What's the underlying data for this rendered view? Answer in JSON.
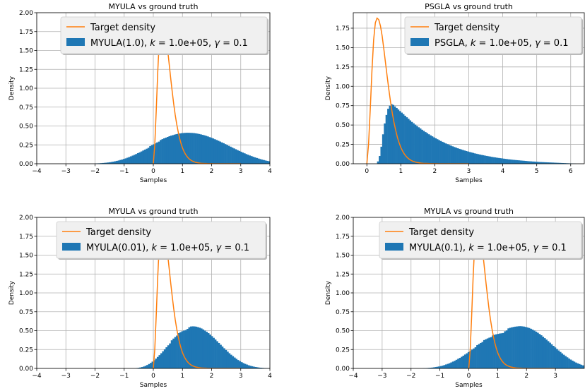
{
  "figure": {
    "colors": {
      "histogram": "#1f77b4",
      "target": "#ff7f0e",
      "grid": "#b0b0b0",
      "legend_bg": "#f0f0f0"
    }
  },
  "chart_data": [
    {
      "type": "bar",
      "title": "MYULA vs ground truth",
      "xlabel": "Samples",
      "ylabel": "Density",
      "xlim": [
        -4,
        4
      ],
      "ylim": [
        0,
        2.0
      ],
      "xticks": [
        "−4",
        "−3",
        "−2",
        "−1",
        "0",
        "1",
        "2",
        "3",
        "4"
      ],
      "xtick_values": [
        -4,
        -3,
        -2,
        -1,
        0,
        1,
        2,
        3,
        4
      ],
      "yticks": [
        "0.00",
        "0.25",
        "0.50",
        "0.75",
        "1.00",
        "1.25",
        "1.50",
        "1.75",
        "2.00"
      ],
      "ytick_values": [
        0,
        0.25,
        0.5,
        0.75,
        1.0,
        1.25,
        1.5,
        1.75,
        2.0
      ],
      "grid": true,
      "legend": {
        "placement": "top-center",
        "target_label": "Target density",
        "hist_prefix": "MYULA(1.0), ",
        "hist_k": "k",
        "hist_mid": " = 1.0e+05, ",
        "hist_g": "γ",
        "hist_end": " = 0.1"
      },
      "histogram": {
        "x_start": -2.0,
        "bin_width": 0.06,
        "values": [
          0.004,
          0.005,
          0.006,
          0.008,
          0.01,
          0.012,
          0.014,
          0.017,
          0.02,
          0.024,
          0.028,
          0.033,
          0.038,
          0.043,
          0.05,
          0.056,
          0.064,
          0.071,
          0.08,
          0.089,
          0.098,
          0.108,
          0.118,
          0.129,
          0.14,
          0.151,
          0.163,
          0.175,
          0.187,
          0.199,
          0.211,
          0.233,
          0.246,
          0.258,
          0.27,
          0.282,
          0.293,
          0.315,
          0.326,
          0.336,
          0.346,
          0.355,
          0.364,
          0.372,
          0.379,
          0.386,
          0.392,
          0.397,
          0.401,
          0.405,
          0.407,
          0.409,
          0.41,
          0.41,
          0.409,
          0.408,
          0.406,
          0.403,
          0.399,
          0.394,
          0.389,
          0.383,
          0.377,
          0.369,
          0.362,
          0.353,
          0.344,
          0.335,
          0.325,
          0.315,
          0.304,
          0.294,
          0.283,
          0.272,
          0.26,
          0.249,
          0.237,
          0.226,
          0.214,
          0.203,
          0.192,
          0.18,
          0.17,
          0.159,
          0.148,
          0.138,
          0.128,
          0.119,
          0.109,
          0.101,
          0.092,
          0.084,
          0.076,
          0.069,
          0.062,
          0.055,
          0.049,
          0.043,
          0.038,
          0.033,
          0.029,
          0.025,
          0.021,
          0.018,
          0.015,
          0.012,
          0.01,
          0.008,
          0.006
        ]
      },
      "target_density": {
        "x": [
          0.0,
          0.05,
          0.1,
          0.15,
          0.2,
          0.25,
          0.3,
          0.35,
          0.4,
          0.45,
          0.5,
          0.55,
          0.6,
          0.65,
          0.7,
          0.75,
          0.8,
          0.85,
          0.9,
          0.95,
          1.0,
          1.05,
          1.1,
          1.15,
          1.2,
          1.25,
          1.3,
          1.35,
          1.4,
          1.45,
          1.5,
          1.55,
          1.6,
          1.65,
          1.7,
          1.75,
          1.8,
          1.85,
          1.9,
          1.95,
          2.0,
          2.05,
          2.1,
          2.15,
          2.2,
          2.25,
          2.3,
          2.35,
          2.4,
          2.45,
          2.5,
          2.55,
          2.6,
          2.65,
          2.7,
          2.75,
          2.8,
          2.85,
          2.9,
          2.95,
          3.0
        ],
        "y": [
          0,
          0.25,
          0.7,
          1.2,
          1.6,
          1.82,
          1.88,
          1.86,
          1.78,
          1.65,
          1.48,
          1.3,
          1.12,
          0.95,
          0.79,
          0.65,
          0.53,
          0.43,
          0.34,
          0.27,
          0.21,
          0.165,
          0.128,
          0.099,
          0.076,
          0.058,
          0.044,
          0.034,
          0.026,
          0.019,
          0.015,
          0.011,
          0.008,
          0.006,
          0.005,
          0.004,
          0.003,
          0.002,
          0.0015,
          0.001,
          0.0008,
          0.0006,
          0.0004,
          0.0003,
          0.0002,
          0.0002,
          0.0001,
          0.0001,
          0.0001,
          0,
          0,
          0,
          0,
          0,
          0,
          0,
          0,
          0,
          0,
          0,
          0
        ]
      }
    },
    {
      "type": "bar",
      "title": "PSGLA vs ground truth",
      "xlabel": "Samples",
      "ylabel": "Density",
      "xlim": [
        -0.4,
        6.4
      ],
      "ylim": [
        0,
        1.95
      ],
      "xticks": [
        "0",
        "1",
        "2",
        "3",
        "4",
        "5",
        "6"
      ],
      "xtick_values": [
        0,
        1,
        2,
        3,
        4,
        5,
        6
      ],
      "yticks": [
        "0.00",
        "0.25",
        "0.50",
        "0.75",
        "1.00",
        "1.25",
        "1.50",
        "1.75"
      ],
      "ytick_values": [
        0,
        0.25,
        0.5,
        0.75,
        1.0,
        1.25,
        1.5,
        1.75
      ],
      "grid": true,
      "legend": {
        "placement": "top-right",
        "target_label": "Target density",
        "hist_prefix": "PSGLA, ",
        "hist_k": "k",
        "hist_mid": " = 1.0e+05, ",
        "hist_g": "γ",
        "hist_end": " = 0.1"
      },
      "histogram": {
        "x_start": 0.3,
        "bin_width": 0.05,
        "values": [
          0.03,
          0.1,
          0.22,
          0.38,
          0.52,
          0.63,
          0.71,
          0.75,
          0.77,
          0.76,
          0.74,
          0.72,
          0.7,
          0.68,
          0.66,
          0.64,
          0.62,
          0.6,
          0.58,
          0.56,
          0.54,
          0.522,
          0.505,
          0.488,
          0.471,
          0.455,
          0.439,
          0.424,
          0.409,
          0.395,
          0.381,
          0.367,
          0.354,
          0.341,
          0.329,
          0.317,
          0.305,
          0.294,
          0.283,
          0.273,
          0.262,
          0.253,
          0.243,
          0.234,
          0.225,
          0.216,
          0.208,
          0.2,
          0.192,
          0.185,
          0.178,
          0.171,
          0.164,
          0.158,
          0.152,
          0.146,
          0.14,
          0.134,
          0.129,
          0.124,
          0.119,
          0.114,
          0.11,
          0.105,
          0.101,
          0.097,
          0.093,
          0.089,
          0.085,
          0.082,
          0.078,
          0.075,
          0.072,
          0.069,
          0.066,
          0.063,
          0.06,
          0.057,
          0.055,
          0.052,
          0.05,
          0.048,
          0.046,
          0.044,
          0.042,
          0.04,
          0.038,
          0.036,
          0.034,
          0.032,
          0.031,
          0.029,
          0.028,
          0.026,
          0.025,
          0.023,
          0.022,
          0.021,
          0.02,
          0.019,
          0.018,
          0.017,
          0.016,
          0.015,
          0.014,
          0.013,
          0.012,
          0.011,
          0.01,
          0.009,
          0.008,
          0.007,
          0.006,
          0.005,
          0.004,
          0.003,
          0.002
        ]
      },
      "target_density": {
        "x": [
          0.0,
          0.05,
          0.1,
          0.15,
          0.2,
          0.25,
          0.3,
          0.35,
          0.4,
          0.45,
          0.5,
          0.55,
          0.6,
          0.65,
          0.7,
          0.75,
          0.8,
          0.85,
          0.9,
          0.95,
          1.0,
          1.05,
          1.1,
          1.15,
          1.2,
          1.25,
          1.3,
          1.35,
          1.4,
          1.45,
          1.5,
          1.55,
          1.6,
          1.65,
          1.7,
          1.75,
          1.8,
          1.85,
          1.9,
          1.95,
          2.0,
          2.05,
          2.1,
          2.15,
          2.2,
          2.25,
          2.3,
          2.35,
          2.4,
          2.45,
          2.5,
          2.55,
          2.6,
          2.65,
          2.7,
          2.75,
          2.8,
          2.85,
          2.9,
          2.95,
          3.0
        ],
        "y": [
          0,
          0.25,
          0.7,
          1.2,
          1.6,
          1.82,
          1.88,
          1.86,
          1.78,
          1.65,
          1.48,
          1.3,
          1.12,
          0.95,
          0.79,
          0.65,
          0.53,
          0.43,
          0.34,
          0.27,
          0.21,
          0.165,
          0.128,
          0.099,
          0.076,
          0.058,
          0.044,
          0.034,
          0.026,
          0.019,
          0.015,
          0.011,
          0.008,
          0.006,
          0.005,
          0.004,
          0.003,
          0.002,
          0.0015,
          0.001,
          0.0008,
          0.0006,
          0.0004,
          0.0003,
          0.0002,
          0.0002,
          0.0001,
          0.0001,
          0.0001,
          0,
          0,
          0,
          0,
          0,
          0,
          0,
          0,
          0,
          0,
          0,
          0
        ]
      }
    },
    {
      "type": "bar",
      "title": "MYULA vs ground truth",
      "xlabel": "Samples",
      "ylabel": "Density",
      "xlim": [
        -4,
        4
      ],
      "ylim": [
        0,
        2.0
      ],
      "xticks": [
        "−4",
        "−3",
        "−2",
        "−1",
        "0",
        "1",
        "2",
        "3",
        "4"
      ],
      "xtick_values": [
        -4,
        -3,
        -2,
        -1,
        0,
        1,
        2,
        3,
        4
      ],
      "yticks": [
        "0.00",
        "0.25",
        "0.50",
        "0.75",
        "1.00",
        "1.25",
        "1.50",
        "1.75",
        "2.00"
      ],
      "ytick_values": [
        0,
        0.25,
        0.5,
        0.75,
        1.0,
        1.25,
        1.5,
        1.75,
        2.0
      ],
      "grid": true,
      "legend": {
        "placement": "top-center",
        "target_label": "Target density",
        "hist_prefix": "MYULA(0.01), ",
        "hist_k": "k",
        "hist_mid": " = 1.0e+05, ",
        "hist_g": "γ",
        "hist_end": " = 0.1"
      },
      "histogram": {
        "x_start": -0.6,
        "bin_width": 0.06,
        "values": [
          0.005,
          0.008,
          0.012,
          0.018,
          0.025,
          0.034,
          0.045,
          0.058,
          0.073,
          0.09,
          0.109,
          0.13,
          0.152,
          0.176,
          0.201,
          0.227,
          0.253,
          0.28,
          0.306,
          0.331,
          0.372,
          0.395,
          0.416,
          0.435,
          0.467,
          0.48,
          0.492,
          0.501,
          0.508,
          0.523,
          0.545,
          0.555,
          0.557,
          0.556,
          0.553,
          0.547,
          0.539,
          0.529,
          0.516,
          0.501,
          0.485,
          0.467,
          0.448,
          0.427,
          0.405,
          0.383,
          0.36,
          0.337,
          0.313,
          0.29,
          0.267,
          0.244,
          0.222,
          0.201,
          0.181,
          0.162,
          0.144,
          0.127,
          0.111,
          0.096,
          0.083,
          0.071,
          0.06,
          0.051,
          0.042,
          0.035,
          0.029,
          0.023,
          0.019,
          0.015,
          0.011,
          0.009,
          0.007,
          0.005,
          0.004,
          0.003,
          0.002
        ]
      },
      "target_density": {
        "x": [
          0.0,
          0.05,
          0.1,
          0.15,
          0.2,
          0.25,
          0.3,
          0.35,
          0.4,
          0.45,
          0.5,
          0.55,
          0.6,
          0.65,
          0.7,
          0.75,
          0.8,
          0.85,
          0.9,
          0.95,
          1.0,
          1.05,
          1.1,
          1.15,
          1.2,
          1.25,
          1.3,
          1.35,
          1.4,
          1.45,
          1.5,
          1.55,
          1.6,
          1.65,
          1.7,
          1.75,
          1.8,
          1.85,
          1.9,
          1.95,
          2.0,
          2.05,
          2.1,
          2.15,
          2.2,
          2.25,
          2.3,
          2.35,
          2.4,
          2.45,
          2.5,
          2.55,
          2.6,
          2.65,
          2.7,
          2.75,
          2.8,
          2.85,
          2.9,
          2.95,
          3.0
        ],
        "y": [
          0,
          0.25,
          0.7,
          1.2,
          1.6,
          1.82,
          1.88,
          1.86,
          1.78,
          1.65,
          1.48,
          1.3,
          1.12,
          0.95,
          0.79,
          0.65,
          0.53,
          0.43,
          0.34,
          0.27,
          0.21,
          0.165,
          0.128,
          0.099,
          0.076,
          0.058,
          0.044,
          0.034,
          0.026,
          0.019,
          0.015,
          0.011,
          0.008,
          0.006,
          0.005,
          0.004,
          0.003,
          0.002,
          0.0015,
          0.001,
          0.0008,
          0.0006,
          0.0004,
          0.0003,
          0.0002,
          0.0002,
          0.0001,
          0.0001,
          0.0001,
          0,
          0,
          0,
          0,
          0,
          0,
          0,
          0,
          0,
          0,
          0,
          0
        ]
      }
    },
    {
      "type": "bar",
      "title": "MYULA vs ground truth",
      "xlabel": "Samples",
      "ylabel": "Density",
      "xlim": [
        -4.0,
        4.0
      ],
      "ylim": [
        0,
        2.0
      ],
      "xticks": [
        "−4",
        "−3",
        "−2",
        "−1",
        "0",
        "1",
        "2",
        "3"
      ],
      "xtick_values": [
        -4,
        -3,
        -2,
        -1,
        0,
        1,
        2,
        3
      ],
      "yticks": [
        "0.00",
        "0.25",
        "0.50",
        "0.75",
        "1.00",
        "1.25",
        "1.50",
        "1.75",
        "2.00"
      ],
      "ytick_values": [
        0,
        0.25,
        0.5,
        0.75,
        1.0,
        1.25,
        1.5,
        1.75,
        2.0
      ],
      "grid": true,
      "legend": {
        "placement": "top-right",
        "target_label": "Target density",
        "hist_prefix": "MYULA(0.1), ",
        "hist_k": "k",
        "hist_mid": " = 1.0e+05, ",
        "hist_g": "γ",
        "hist_end": " = 0.1"
      },
      "histogram": {
        "x_start": -1.6,
        "bin_width": 0.06,
        "values": [
          0.003,
          0.004,
          0.005,
          0.007,
          0.009,
          0.011,
          0.014,
          0.018,
          0.022,
          0.026,
          0.031,
          0.037,
          0.044,
          0.052,
          0.06,
          0.069,
          0.079,
          0.09,
          0.101,
          0.114,
          0.127,
          0.14,
          0.154,
          0.169,
          0.184,
          0.2,
          0.216,
          0.232,
          0.248,
          0.264,
          0.28,
          0.308,
          0.323,
          0.337,
          0.35,
          0.375,
          0.387,
          0.397,
          0.407,
          0.415,
          0.437,
          0.445,
          0.452,
          0.457,
          0.462,
          0.465,
          0.468,
          0.492,
          0.503,
          0.53,
          0.538,
          0.544,
          0.549,
          0.553,
          0.556,
          0.558,
          0.559,
          0.557,
          0.554,
          0.549,
          0.543,
          0.535,
          0.525,
          0.514,
          0.501,
          0.487,
          0.472,
          0.456,
          0.439,
          0.42,
          0.401,
          0.382,
          0.361,
          0.341,
          0.32,
          0.299,
          0.278,
          0.258,
          0.238,
          0.218,
          0.199,
          0.181,
          0.164,
          0.147,
          0.131,
          0.117,
          0.103,
          0.09,
          0.078,
          0.067,
          0.058,
          0.049,
          0.041,
          0.034,
          0.028,
          0.023,
          0.019,
          0.015,
          0.012,
          0.009,
          0.007,
          0.005,
          0.004,
          0.003,
          0.002
        ]
      },
      "target_density": {
        "x": [
          0.0,
          0.05,
          0.1,
          0.15,
          0.2,
          0.25,
          0.3,
          0.35,
          0.4,
          0.45,
          0.5,
          0.55,
          0.6,
          0.65,
          0.7,
          0.75,
          0.8,
          0.85,
          0.9,
          0.95,
          1.0,
          1.05,
          1.1,
          1.15,
          1.2,
          1.25,
          1.3,
          1.35,
          1.4,
          1.45,
          1.5,
          1.55,
          1.6,
          1.65,
          1.7,
          1.75,
          1.8,
          1.85,
          1.9,
          1.95,
          2.0,
          2.05,
          2.1,
          2.15,
          2.2,
          2.25,
          2.3,
          2.35,
          2.4,
          2.45,
          2.5,
          2.55,
          2.6,
          2.65,
          2.7,
          2.75,
          2.8,
          2.85,
          2.9,
          2.95,
          3.0
        ],
        "y": [
          0,
          0.25,
          0.7,
          1.2,
          1.6,
          1.82,
          1.88,
          1.86,
          1.78,
          1.65,
          1.48,
          1.3,
          1.12,
          0.95,
          0.79,
          0.65,
          0.53,
          0.43,
          0.34,
          0.27,
          0.21,
          0.165,
          0.128,
          0.099,
          0.076,
          0.058,
          0.044,
          0.034,
          0.026,
          0.019,
          0.015,
          0.011,
          0.008,
          0.006,
          0.005,
          0.004,
          0.003,
          0.002,
          0.0015,
          0.001,
          0.0008,
          0.0006,
          0.0004,
          0.0003,
          0.0002,
          0.0002,
          0.0001,
          0.0001,
          0.0001,
          0,
          0,
          0,
          0,
          0,
          0,
          0,
          0,
          0,
          0,
          0,
          0
        ]
      }
    }
  ]
}
